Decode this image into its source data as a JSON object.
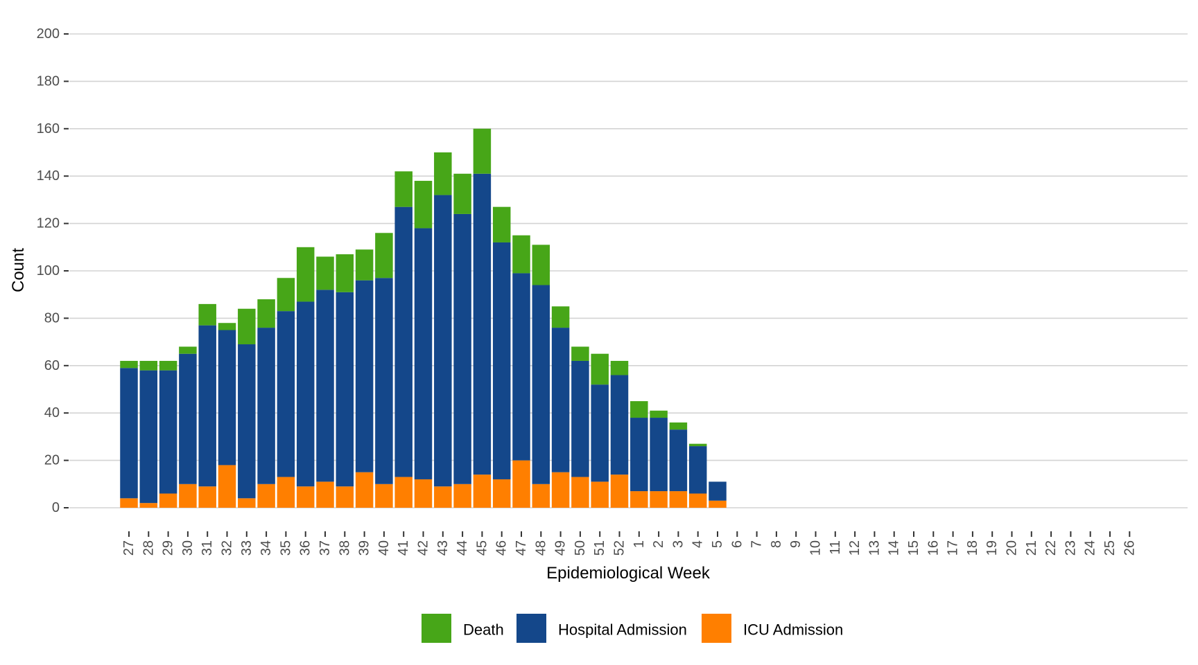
{
  "chart_data": {
    "type": "bar",
    "stacked": true,
    "title": "",
    "xlabel": "Epidemiological Week",
    "ylabel": "Count",
    "ylim": [
      0,
      200
    ],
    "yticks": [
      0,
      20,
      40,
      60,
      80,
      100,
      120,
      140,
      160,
      180,
      200
    ],
    "grid": "horizontal",
    "legend_position": "bottom",
    "categories": [
      "27",
      "28",
      "29",
      "30",
      "31",
      "32",
      "33",
      "34",
      "35",
      "36",
      "37",
      "38",
      "39",
      "40",
      "41",
      "42",
      "43",
      "44",
      "45",
      "46",
      "47",
      "48",
      "49",
      "50",
      "51",
      "52",
      "1",
      "2",
      "3",
      "4",
      "5",
      "6",
      "7",
      "8",
      "9",
      "10",
      "11",
      "12",
      "13",
      "14",
      "15",
      "16",
      "17",
      "18",
      "19",
      "20",
      "21",
      "22",
      "23",
      "24",
      "25",
      "26"
    ],
    "series": [
      {
        "name": "ICU Admission",
        "color": "#ff7f00",
        "values": [
          4,
          2,
          6,
          10,
          9,
          18,
          4,
          10,
          13,
          9,
          11,
          9,
          15,
          10,
          13,
          12,
          9,
          10,
          14,
          12,
          20,
          10,
          15,
          13,
          11,
          14,
          7,
          7,
          7,
          6,
          3,
          0,
          0,
          0,
          0,
          0,
          0,
          0,
          0,
          0,
          0,
          0,
          0,
          0,
          0,
          0,
          0,
          0,
          0,
          0,
          0,
          0
        ]
      },
      {
        "name": "Hospital Admission",
        "color": "#14478a",
        "values": [
          55,
          56,
          52,
          55,
          68,
          57,
          65,
          66,
          70,
          78,
          81,
          82,
          81,
          87,
          114,
          106,
          123,
          114,
          127,
          100,
          79,
          84,
          61,
          49,
          41,
          42,
          31,
          31,
          26,
          20,
          8,
          0,
          0,
          0,
          0,
          0,
          0,
          0,
          0,
          0,
          0,
          0,
          0,
          0,
          0,
          0,
          0,
          0,
          0,
          0,
          0,
          0
        ]
      },
      {
        "name": "Death",
        "color": "#47a618",
        "values": [
          3,
          4,
          4,
          3,
          9,
          3,
          15,
          12,
          14,
          23,
          14,
          16,
          13,
          19,
          15,
          20,
          18,
          17,
          19,
          15,
          16,
          17,
          9,
          6,
          13,
          6,
          7,
          3,
          3,
          1,
          0,
          0,
          0,
          0,
          0,
          0,
          0,
          0,
          0,
          0,
          0,
          0,
          0,
          0,
          0,
          0,
          0,
          0,
          0,
          0,
          0,
          0
        ]
      }
    ],
    "stack_totals": [
      62,
      62,
      62,
      68,
      86,
      78,
      84,
      88,
      97,
      110,
      106,
      107,
      109,
      116,
      142,
      138,
      150,
      141,
      160,
      127,
      115,
      111,
      85,
      68,
      65,
      62,
      45,
      41,
      36,
      27,
      11,
      0,
      0,
      0,
      0,
      0,
      0,
      0,
      0,
      0,
      0,
      0,
      0,
      0,
      0,
      0,
      0,
      0,
      0,
      0,
      0,
      0
    ],
    "legend": [
      {
        "name": "Death",
        "color": "#47a618"
      },
      {
        "name": "Hospital Admission",
        "color": "#14478a"
      },
      {
        "name": "ICU Admission",
        "color": "#ff7f00"
      }
    ]
  }
}
